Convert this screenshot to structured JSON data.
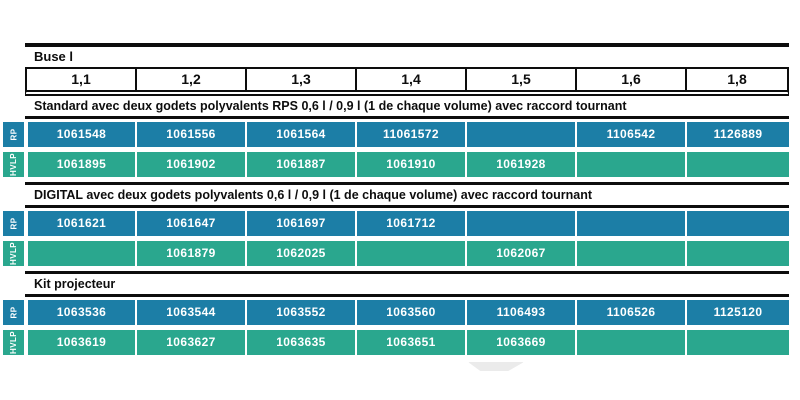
{
  "table": {
    "nozzle_header": "Buse l",
    "columns": [
      "1,1",
      "1,2",
      "1,3",
      "1,4",
      "1,5",
      "1,6",
      "1,8"
    ],
    "colors": {
      "rp_blue": "#1c7ea6",
      "hvlp_teal": "#2aa78e",
      "rule_black": "#0d0d0d"
    },
    "sections": [
      {
        "title": "Standard avec deux godets polyvalents RPS 0,6 l / 0,9 l (1 de chaque volume) avec raccord tournant",
        "rows": [
          {
            "label": "RP",
            "cells": [
              "1061548",
              "1061556",
              "1061564",
              "11061572",
              "",
              "1106542",
              "1126889"
            ]
          },
          {
            "label": "HVLP",
            "cells": [
              "1061895",
              "1061902",
              "1061887",
              "1061910",
              "1061928",
              "",
              ""
            ]
          }
        ]
      },
      {
        "title": "DIGITAL avec deux godets polyvalents 0,6 l / 0,9 l (1 de chaque volume) avec raccord tournant",
        "rows": [
          {
            "label": "RP",
            "cells": [
              "1061621",
              "1061647",
              "1061697",
              "1061712",
              "",
              "",
              ""
            ]
          },
          {
            "label": "HVLP",
            "cells": [
              "",
              "1061879",
              "1062025",
              "",
              "1062067",
              "",
              ""
            ]
          }
        ]
      },
      {
        "title": "Kit projecteur",
        "rows": [
          {
            "label": "RP",
            "cells": [
              "1063536",
              "1063544",
              "1063552",
              "1063560",
              "1106493",
              "1106526",
              "1125120"
            ]
          },
          {
            "label": "HVLP",
            "cells": [
              "1063619",
              "1063627",
              "1063635",
              "1063651",
              "1063669",
              "",
              ""
            ]
          }
        ]
      }
    ]
  }
}
